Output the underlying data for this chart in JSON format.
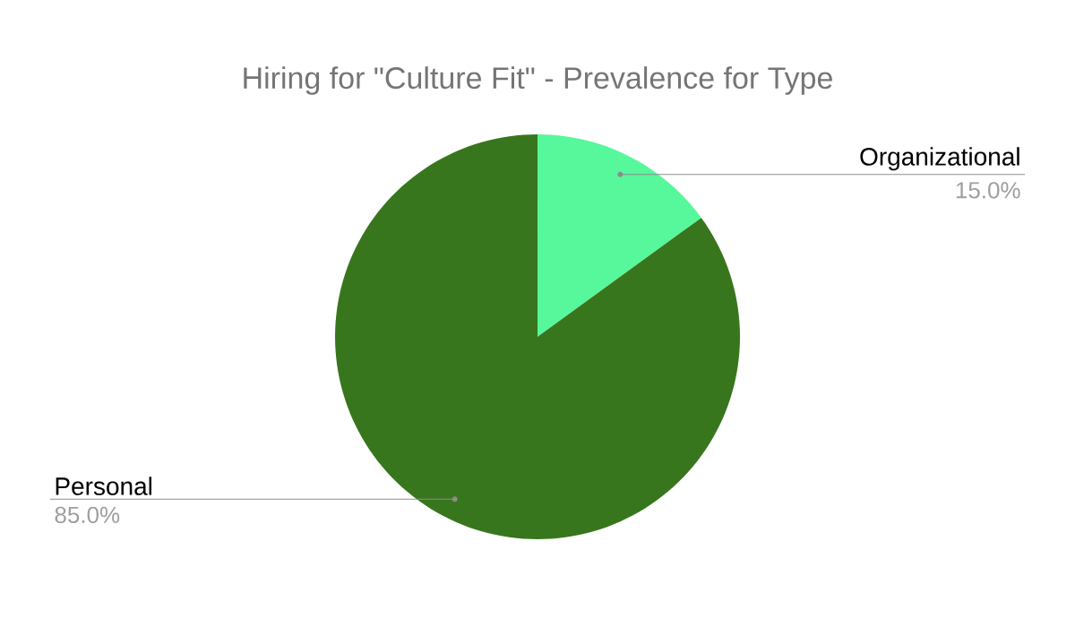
{
  "chart_data": {
    "type": "pie",
    "title": "Hiring for \"Culture Fit\" - Prevalence for Type",
    "categories": [
      "Organizational",
      "Personal"
    ],
    "values": [
      15,
      85
    ],
    "value_labels": [
      "15.0%",
      "85.0%"
    ],
    "colors": [
      "#57f79b",
      "#38761d"
    ]
  }
}
